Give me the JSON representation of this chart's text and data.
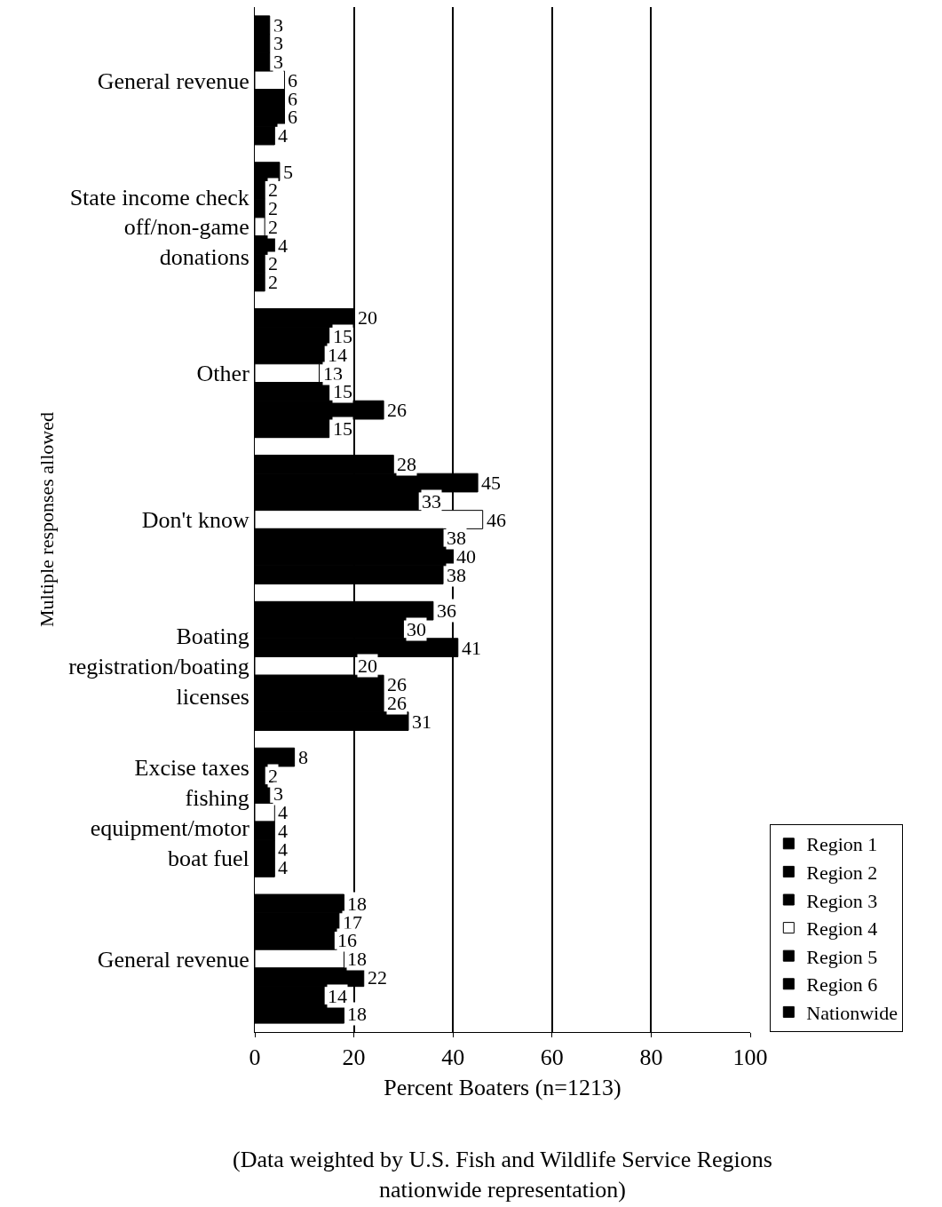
{
  "chart_data": {
    "type": "bar",
    "orientation": "horizontal",
    "categories": [
      "General revenue",
      "State income check off/non-game donations",
      "Other",
      "Don't know",
      "Boating registration/boating licenses",
      "Excise taxes fishing equipment/motor boat fuel",
      "General revenue"
    ],
    "series": [
      {
        "name": "Region 1",
        "color": "#000000",
        "values": [
          3,
          5,
          20,
          28,
          36,
          8,
          18
        ]
      },
      {
        "name": "Region 2",
        "color": "#000000",
        "values": [
          3,
          2,
          15,
          45,
          30,
          2,
          17
        ]
      },
      {
        "name": "Region 3",
        "color": "#000000",
        "values": [
          3,
          2,
          14,
          33,
          41,
          3,
          16
        ]
      },
      {
        "name": "Region 4",
        "color": "#ffffff",
        "values": [
          6,
          2,
          13,
          46,
          20,
          4,
          18
        ]
      },
      {
        "name": "Region 5",
        "color": "#000000",
        "values": [
          6,
          4,
          15,
          38,
          26,
          4,
          22
        ]
      },
      {
        "name": "Region 6",
        "color": "#000000",
        "values": [
          6,
          2,
          26,
          40,
          26,
          4,
          14
        ]
      },
      {
        "name": "Nationwide",
        "color": "#000000",
        "values": [
          4,
          2,
          15,
          38,
          31,
          4,
          18
        ]
      }
    ],
    "xlabel": "Percent Boaters (n=1213)",
    "ylabel": "Multiple responses allowed",
    "annotations": [
      "(Data weighted by U.S. Fish and Wildlife Service Regions nationwide representation)"
    ],
    "xlim": [
      0,
      100
    ],
    "xticks": [
      0,
      20,
      40,
      60,
      80,
      100
    ],
    "grid": "x",
    "legend": "bottom right",
    "data_labels": true
  }
}
